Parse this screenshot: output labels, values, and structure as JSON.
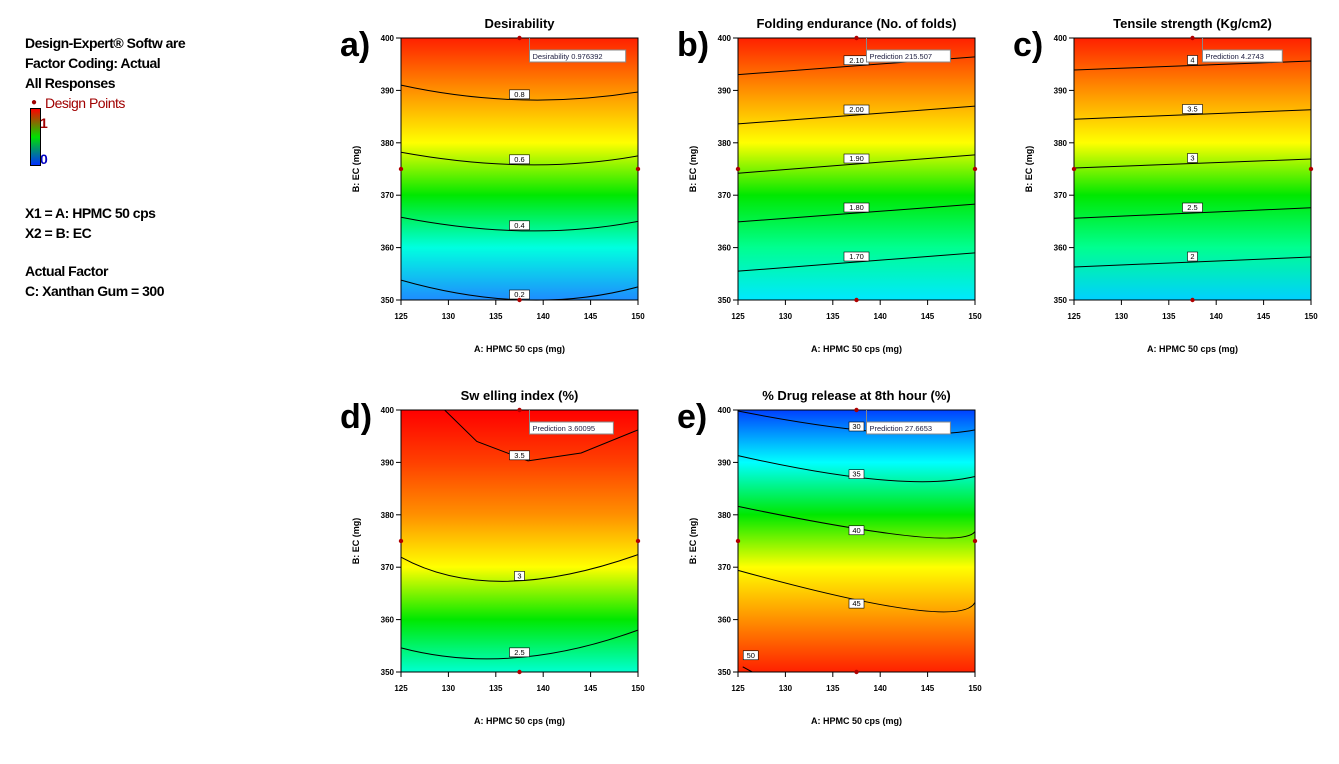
{
  "legend": {
    "line1": "Design-Expert® Softw are",
    "line2": "Factor Coding: Actual",
    "line3": "All Responses",
    "design_points": "Design Points",
    "scale_high": "1",
    "scale_low": "0",
    "x1": "X1 = A: HPMC 50 cps",
    "x2": "X2 = B: EC",
    "actual_factor": "Actual Factor",
    "factor_c": "C: Xanthan Gum = 300"
  },
  "chart_data": [
    {
      "type": "contour",
      "panel": "a)",
      "title": "Desirability",
      "xlabel": "A: HPMC 50 cps (mg)",
      "ylabel": "B: EC (mg)",
      "xlim": [
        125,
        150
      ],
      "ylim": [
        350,
        400
      ],
      "xticks": [
        "125",
        "130",
        "135",
        "140",
        "145",
        "150"
      ],
      "yticks": [
        "350",
        "360",
        "370",
        "380",
        "390",
        "400"
      ],
      "colors": [
        "#ff2000",
        "#ff9000",
        "#ffff00",
        "#00e800",
        "#00ffe0",
        "#1e8cff"
      ],
      "contours": [
        {
          "label": "0.8",
          "points": [
            [
              125,
              391
            ],
            [
              137.5,
              388.2
            ],
            [
              150,
              389.7
            ]
          ]
        },
        {
          "label": "0.6",
          "points": [
            [
              125,
              378.2
            ],
            [
              138,
              375.8
            ],
            [
              150,
              377.5
            ]
          ]
        },
        {
          "label": "0.4",
          "points": [
            [
              125,
              365.8
            ],
            [
              138,
              363.2
            ],
            [
              150,
              365
            ]
          ]
        },
        {
          "label": "0.2",
          "points": [
            [
              125,
              353.8
            ],
            [
              138,
              350
            ],
            [
              150,
              352.5
            ]
          ]
        }
      ],
      "prediction": {
        "label": "Desirability",
        "value": "0.976392",
        "at": [
          137.5,
          400
        ]
      },
      "design_points": [
        [
          125,
          375
        ],
        [
          150,
          375
        ],
        [
          137.5,
          400
        ],
        [
          137.5,
          350
        ]
      ]
    },
    {
      "type": "contour",
      "panel": "b)",
      "title": "Folding endurance (No. of folds)",
      "xlabel": "A: HPMC 50 cps (mg)",
      "ylabel": "B: EC (mg)",
      "xlim": [
        125,
        150
      ],
      "ylim": [
        350,
        400
      ],
      "xticks": [
        "125",
        "130",
        "135",
        "140",
        "145",
        "150"
      ],
      "yticks": [
        "350",
        "360",
        "370",
        "380",
        "390",
        "400"
      ],
      "colors": [
        "#ff2000",
        "#ff9000",
        "#ffff00",
        "#00e800",
        "#00ff90",
        "#00e8ff"
      ],
      "contours": [
        {
          "label": "2.10",
          "points": [
            [
              125,
              393
            ],
            [
              150,
              396.4
            ]
          ]
        },
        {
          "label": "2.00",
          "points": [
            [
              125,
              383.6
            ],
            [
              150,
              387
            ]
          ]
        },
        {
          "label": "1.90",
          "points": [
            [
              125,
              374.2
            ],
            [
              150,
              377.7
            ]
          ]
        },
        {
          "label": "1.80",
          "points": [
            [
              125,
              364.9
            ],
            [
              150,
              368.3
            ]
          ]
        },
        {
          "label": "1.70",
          "points": [
            [
              125,
              355.5
            ],
            [
              150,
              359
            ]
          ]
        }
      ],
      "prediction": {
        "label": "Prediction",
        "value": "215.507",
        "at": [
          137.5,
          400
        ]
      },
      "design_points": [
        [
          125,
          375
        ],
        [
          150,
          375
        ],
        [
          137.5,
          400
        ],
        [
          137.5,
          350
        ]
      ]
    },
    {
      "type": "contour",
      "panel": "c)",
      "title": "Tensile strength (Kg/cm2)",
      "xlabel": "A: HPMC 50 cps (mg)",
      "ylabel": "B: EC (mg)",
      "xlim": [
        125,
        150
      ],
      "ylim": [
        350,
        400
      ],
      "xticks": [
        "125",
        "130",
        "135",
        "140",
        "145",
        "150"
      ],
      "yticks": [
        "350",
        "360",
        "370",
        "380",
        "390",
        "400"
      ],
      "colors": [
        "#ff2000",
        "#ff9000",
        "#ffff00",
        "#00e800",
        "#00ff90",
        "#00d0ff"
      ],
      "contours": [
        {
          "label": "4",
          "points": [
            [
              125,
              393.9
            ],
            [
              150,
              395.6
            ]
          ]
        },
        {
          "label": "3.5",
          "points": [
            [
              125,
              384.5
            ],
            [
              150,
              386.3
            ]
          ]
        },
        {
          "label": "3",
          "points": [
            [
              125,
              375.2
            ],
            [
              150,
              376.9
            ]
          ]
        },
        {
          "label": "2.5",
          "points": [
            [
              125,
              365.6
            ],
            [
              150,
              367.6
            ]
          ]
        },
        {
          "label": "2",
          "points": [
            [
              125,
              356.3
            ],
            [
              150,
              358.2
            ]
          ]
        }
      ],
      "prediction": {
        "label": "Prediction",
        "value": "4.2743",
        "at": [
          137.5,
          400
        ]
      },
      "design_points": [
        [
          125,
          375
        ],
        [
          150,
          375
        ],
        [
          137.5,
          400
        ],
        [
          137.5,
          350
        ]
      ]
    },
    {
      "type": "contour",
      "panel": "d)",
      "title": "Sw elling index (%)",
      "xlabel": "A: HPMC 50 cps (mg)",
      "ylabel": "B: EC (mg)",
      "xlim": [
        125,
        150
      ],
      "ylim": [
        350,
        400
      ],
      "xticks": [
        "125",
        "130",
        "135",
        "140",
        "145",
        "150"
      ],
      "yticks": [
        "350",
        "360",
        "370",
        "380",
        "390",
        "400"
      ],
      "colors": [
        "#ff0000",
        "#ff4000",
        "#ff9000",
        "#ffff00",
        "#00e800",
        "#00ffd0"
      ],
      "contours": [
        {
          "label": "3.5",
          "points": [
            [
              129.6,
              400
            ],
            [
              133,
              394
            ],
            [
              138.4,
              390.3
            ],
            [
              144,
              391.8
            ],
            [
              150,
              396.2
            ]
          ]
        },
        {
          "label": "3",
          "points": [
            [
              125,
              371.9
            ],
            [
              136,
              367.3
            ],
            [
              150,
              372.4
            ]
          ]
        },
        {
          "label": "2.5",
          "points": [
            [
              125,
              354.6
            ],
            [
              137,
              352.7
            ],
            [
              150,
              358
            ]
          ]
        }
      ],
      "prediction": {
        "label": "Prediction",
        "value": "3.60095",
        "at": [
          137.5,
          400
        ]
      },
      "design_points": [
        [
          125,
          375
        ],
        [
          150,
          375
        ],
        [
          137.5,
          400
        ],
        [
          137.5,
          350
        ]
      ]
    },
    {
      "type": "contour",
      "panel": "e)",
      "title": "% Drug release at 8th hour (%)",
      "xlabel": "A: HPMC 50 cps (mg)",
      "ylabel": "B: EC (mg)",
      "xlim": [
        125,
        150
      ],
      "ylim": [
        350,
        400
      ],
      "xticks": [
        "125",
        "130",
        "135",
        "140",
        "145",
        "150"
      ],
      "yticks": [
        "350",
        "360",
        "370",
        "380",
        "390",
        "400"
      ],
      "colors": [
        "#0040ff",
        "#00ffff",
        "#00e800",
        "#ffff00",
        "#ff9000",
        "#ff2000"
      ],
      "contours": [
        {
          "label": "30",
          "points": [
            [
              125,
              399.8
            ],
            [
              140,
              395.8
            ],
            [
              150,
              396.2
            ]
          ]
        },
        {
          "label": "35",
          "points": [
            [
              125,
              391.3
            ],
            [
              140,
              386.7
            ],
            [
              150,
              387.3
            ]
          ]
        },
        {
          "label": "40",
          "points": [
            [
              125,
              381.6
            ],
            [
              143,
              376
            ],
            [
              150,
              376.8
            ]
          ]
        },
        {
          "label": "45",
          "points": [
            [
              125,
              369.4
            ],
            [
              143,
              362
            ],
            [
              150,
              363.3
            ]
          ]
        },
        {
          "label": "50",
          "points": [
            [
              125.5,
              351
            ],
            [
              126.5,
              350
            ]
          ]
        }
      ],
      "prediction": {
        "label": "Prediction",
        "value": "27.6653",
        "at": [
          137.5,
          400
        ]
      },
      "design_points": [
        [
          125,
          375
        ],
        [
          150,
          375
        ],
        [
          137.5,
          400
        ],
        [
          137.5,
          350
        ]
      ]
    }
  ]
}
